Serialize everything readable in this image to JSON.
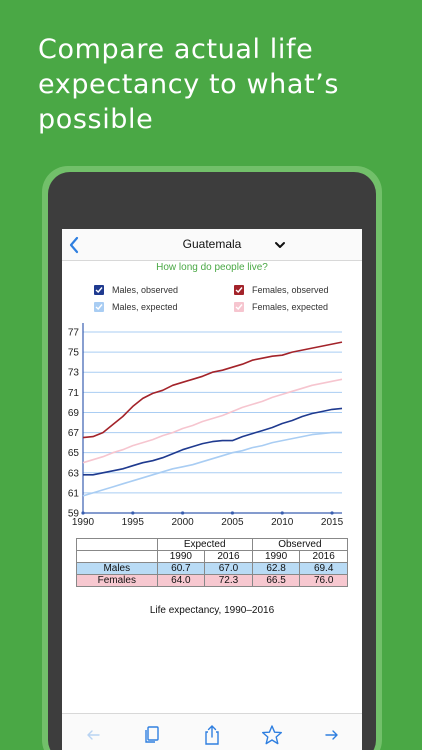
{
  "headline": "Compare actual life expectancy to what’s possible",
  "colors": {
    "background": "#4aa845",
    "males_observed": "#1f3a8f",
    "males_expected": "#a9cdf3",
    "females_observed": "#a3232a",
    "females_expected": "#f6c5cf",
    "accent": "#2f7fe0"
  },
  "nav": {
    "back_icon": "chevron-left-icon",
    "title": "Guatemala",
    "dropdown_icon": "chevron-down-icon"
  },
  "subtitle": "How long do people live?",
  "legend": {
    "males_observed": "Males, observed",
    "females_observed": "Females, observed",
    "males_expected": "Males, expected",
    "females_expected": "Females, expected"
  },
  "chart_data": {
    "type": "line",
    "x_ticks": [
      "1990",
      "1995",
      "2000",
      "2005",
      "2010",
      "2015"
    ],
    "y_ticks": [
      "59",
      "61",
      "63",
      "65",
      "67",
      "69",
      "71",
      "73",
      "75",
      "77"
    ],
    "xlim": [
      1990,
      2016
    ],
    "ylim": [
      59,
      77.5
    ],
    "grid": true,
    "series": [
      {
        "name": "Females, observed",
        "color": "#a3232a",
        "x": [
          1990,
          1991,
          1992,
          1993,
          1994,
          1995,
          1996,
          1997,
          1998,
          1999,
          2000,
          2001,
          2002,
          2003,
          2004,
          2005,
          2006,
          2007,
          2008,
          2009,
          2010,
          2011,
          2012,
          2013,
          2014,
          2015,
          2016
        ],
        "y": [
          66.5,
          66.6,
          67.0,
          67.8,
          68.6,
          69.6,
          70.4,
          70.9,
          71.2,
          71.7,
          72.0,
          72.3,
          72.6,
          73.0,
          73.2,
          73.5,
          73.8,
          74.2,
          74.4,
          74.6,
          74.7,
          75.0,
          75.2,
          75.4,
          75.6,
          75.8,
          76.0
        ]
      },
      {
        "name": "Females, expected",
        "color": "#f6c5cf",
        "x": [
          1990,
          1991,
          1992,
          1993,
          1994,
          1995,
          1996,
          1997,
          1998,
          1999,
          2000,
          2001,
          2002,
          2003,
          2004,
          2005,
          2006,
          2007,
          2008,
          2009,
          2010,
          2011,
          2012,
          2013,
          2014,
          2015,
          2016
        ],
        "y": [
          64.0,
          64.3,
          64.6,
          65.0,
          65.3,
          65.7,
          66.0,
          66.3,
          66.7,
          67.0,
          67.4,
          67.7,
          68.1,
          68.4,
          68.7,
          69.1,
          69.5,
          69.8,
          70.1,
          70.5,
          70.8,
          71.1,
          71.4,
          71.7,
          71.9,
          72.1,
          72.3
        ]
      },
      {
        "name": "Males, observed",
        "color": "#1f3a8f",
        "x": [
          1990,
          1991,
          1992,
          1993,
          1994,
          1995,
          1996,
          1997,
          1998,
          1999,
          2000,
          2001,
          2002,
          2003,
          2004,
          2005,
          2006,
          2007,
          2008,
          2009,
          2010,
          2011,
          2012,
          2013,
          2014,
          2015,
          2016
        ],
        "y": [
          62.8,
          62.8,
          63.0,
          63.2,
          63.4,
          63.7,
          64.0,
          64.2,
          64.5,
          64.9,
          65.3,
          65.6,
          65.9,
          66.1,
          66.2,
          66.2,
          66.6,
          66.9,
          67.2,
          67.5,
          67.9,
          68.2,
          68.6,
          68.9,
          69.1,
          69.3,
          69.4
        ]
      },
      {
        "name": "Males, expected",
        "color": "#a9cdf3",
        "x": [
          1990,
          1991,
          1992,
          1993,
          1994,
          1995,
          1996,
          1997,
          1998,
          1999,
          2000,
          2001,
          2002,
          2003,
          2004,
          2005,
          2006,
          2007,
          2008,
          2009,
          2010,
          2011,
          2012,
          2013,
          2014,
          2015,
          2016
        ],
        "y": [
          60.7,
          61.0,
          61.3,
          61.6,
          61.9,
          62.2,
          62.5,
          62.8,
          63.1,
          63.4,
          63.6,
          63.8,
          64.1,
          64.4,
          64.7,
          65.0,
          65.2,
          65.5,
          65.7,
          66.0,
          66.2,
          66.4,
          66.6,
          66.8,
          66.9,
          67.0,
          67.0
        ]
      }
    ]
  },
  "table": {
    "group_headers": [
      "Expected",
      "Observed"
    ],
    "year_headers": [
      "1990",
      "2016",
      "1990",
      "2016"
    ],
    "rows": [
      {
        "label": "Males",
        "values": [
          "60.7",
          "67.0",
          "62.8",
          "69.4"
        ],
        "bg": "#b9dbf5"
      },
      {
        "label": "Females",
        "values": [
          "64.0",
          "72.3",
          "66.5",
          "76.0"
        ],
        "bg": "#f7c8d0"
      }
    ]
  },
  "caption": "Life expectancy, 1990–2016",
  "toolbar": {
    "back_icon": "arrow-left-icon",
    "copy_icon": "copy-icon",
    "share_icon": "share-icon",
    "favorite_icon": "star-icon",
    "forward_icon": "arrow-right-icon"
  }
}
